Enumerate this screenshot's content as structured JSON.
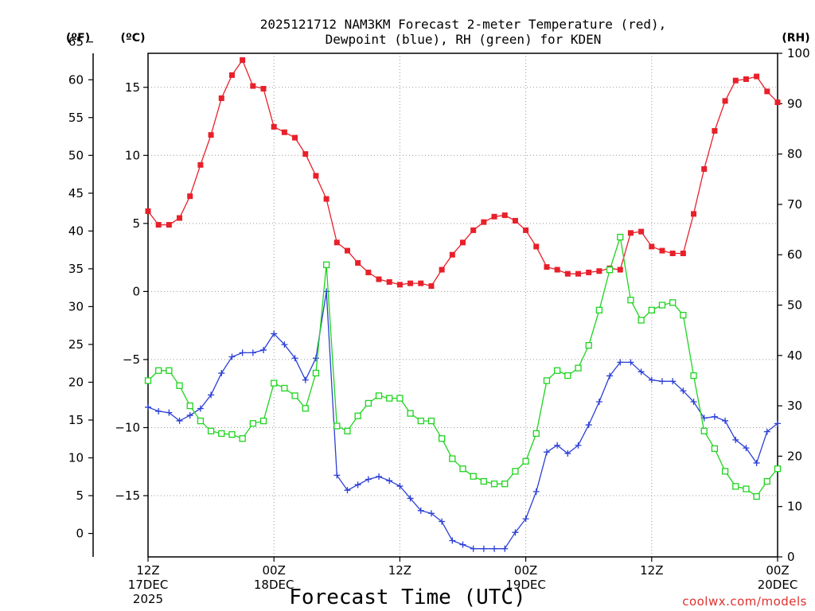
{
  "chart_data": {
    "type": "line",
    "title_line1": "2025121712 NAM3KM Forecast 2-meter Temperature (red),",
    "title_line2": "Dewpoint (blue), RH (green) for KDEN",
    "xlabel": "Forecast Time (UTC)",
    "credit": "coolwx.com/models",
    "axes": {
      "fahrenheit": {
        "unit_label": "(ºF)",
        "ticks": [
          0,
          5,
          10,
          15,
          20,
          25,
          30,
          35,
          40,
          45,
          50,
          55,
          60,
          65
        ]
      },
      "celsius": {
        "unit_label": "(ºC)",
        "ylim": [
          -19.5,
          17.5
        ],
        "ticks": [
          -15,
          -10,
          -5,
          0,
          5,
          10,
          15
        ]
      },
      "rh": {
        "unit_label": "(RH)",
        "ylim": [
          0,
          100
        ],
        "ticks": [
          0,
          10,
          20,
          30,
          40,
          50,
          60,
          70,
          80,
          90,
          100
        ]
      },
      "x": {
        "unit": "forecast hour",
        "xlim": [
          0,
          60
        ],
        "ticks": [
          {
            "hour": 0,
            "line1": "12Z",
            "line2": "17DEC",
            "line3": "2025"
          },
          {
            "hour": 12,
            "line1": "00Z",
            "line2": "18DEC",
            "line3": ""
          },
          {
            "hour": 24,
            "line1": "12Z",
            "line2": "",
            "line3": ""
          },
          {
            "hour": 36,
            "line1": "00Z",
            "line2": "19DEC",
            "line3": ""
          },
          {
            "hour": 48,
            "line1": "12Z",
            "line2": "",
            "line3": ""
          },
          {
            "hour": 60,
            "line1": "00Z",
            "line2": "20DEC",
            "line3": ""
          }
        ]
      }
    },
    "grid": true,
    "x": [
      0,
      1,
      2,
      3,
      4,
      5,
      6,
      7,
      8,
      9,
      10,
      11,
      12,
      13,
      14,
      15,
      16,
      17,
      18,
      19,
      20,
      21,
      22,
      23,
      24,
      25,
      26,
      27,
      28,
      29,
      30,
      31,
      32,
      33,
      34,
      35,
      36,
      37,
      38,
      39,
      40,
      41,
      42,
      43,
      44,
      45,
      46,
      47,
      48,
      49,
      50,
      51,
      52,
      53,
      54,
      55,
      56,
      57,
      58,
      59,
      60
    ],
    "series": [
      {
        "name": "Temperature",
        "units": "°C",
        "color": "#e8202a",
        "marker": "filled-square",
        "values": [
          5.9,
          4.9,
          4.9,
          5.4,
          7.0,
          9.3,
          11.5,
          14.2,
          15.9,
          17.0,
          15.1,
          14.9,
          12.1,
          11.7,
          11.3,
          10.1,
          8.5,
          6.8,
          3.6,
          3.0,
          2.1,
          1.4,
          0.9,
          0.7,
          0.5,
          0.6,
          0.6,
          0.4,
          1.6,
          2.7,
          3.6,
          4.5,
          5.1,
          5.5,
          5.6,
          5.2,
          4.5,
          3.3,
          1.8,
          1.6,
          1.3,
          1.3,
          1.4,
          1.5,
          1.7,
          1.6,
          4.3,
          4.4,
          3.3,
          3.0,
          2.8,
          2.8,
          5.7,
          9.0,
          11.8,
          14.0,
          15.5,
          15.6,
          15.8,
          14.7,
          13.9
        ]
      },
      {
        "name": "Dewpoint",
        "units": "°C",
        "color": "#2b3fd6",
        "marker": "plus",
        "values": [
          -8.5,
          -8.8,
          -8.9,
          -9.5,
          -9.1,
          -8.6,
          -7.6,
          -6.0,
          -4.8,
          -4.5,
          -4.5,
          -4.3,
          -3.1,
          -3.9,
          -4.9,
          -6.5,
          -4.9,
          0.0,
          -13.5,
          -14.6,
          -14.2,
          -13.8,
          -13.6,
          -13.9,
          -14.3,
          -15.2,
          -16.1,
          -16.3,
          -16.9,
          -18.3,
          -18.6,
          -18.9,
          -18.9,
          -18.9,
          -18.9,
          -17.7,
          -16.7,
          -14.7,
          -11.8,
          -11.3,
          -11.9,
          -11.3,
          -9.8,
          -8.1,
          -6.2,
          -5.2,
          -5.2,
          -5.9,
          -6.5,
          -6.6,
          -6.6,
          -7.3,
          -8.1,
          -9.3,
          -9.2,
          -9.5,
          -10.9,
          -11.5,
          -12.6,
          -10.3,
          -9.7
        ]
      },
      {
        "name": "RH",
        "units": "%",
        "color": "#1fd41f",
        "marker": "open-square",
        "values": [
          35,
          37,
          37,
          34,
          30,
          27,
          25,
          24.5,
          24.3,
          23.5,
          26.5,
          27,
          34.5,
          33.5,
          32,
          29.5,
          36.5,
          58,
          26,
          25,
          28,
          30.5,
          32,
          31.5,
          31.5,
          28.5,
          27,
          27,
          23.5,
          19.5,
          17.5,
          16,
          15,
          14.5,
          14.5,
          17,
          19,
          24.5,
          35,
          37,
          36,
          37.5,
          42,
          49,
          57,
          63.5,
          51,
          47,
          49,
          50,
          50.5,
          48,
          36,
          25,
          21.5,
          17,
          14,
          13.5,
          12,
          15,
          17.5
        ]
      }
    ]
  }
}
